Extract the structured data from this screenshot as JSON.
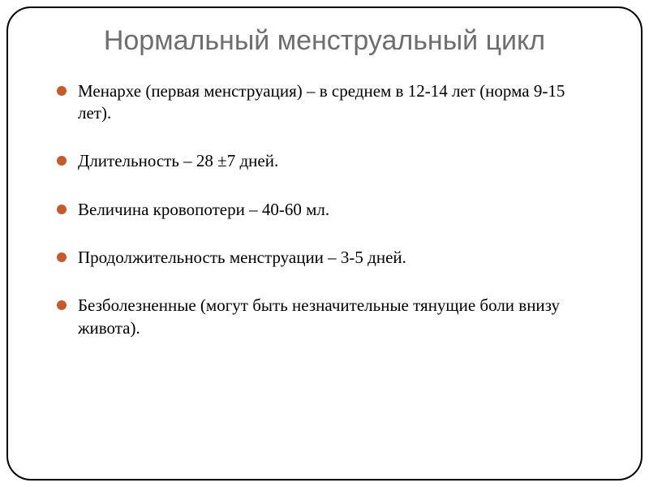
{
  "slide": {
    "title": "Нормальный менструальный цикл",
    "title_color": "#6e6e6e",
    "title_fontsize": 34,
    "border_color": "#000000",
    "border_radius": 30,
    "background_color": "#ffffff",
    "bullet_color": "#c55a2a",
    "bullet_size": 12,
    "text_color": "#000000",
    "text_fontsize": 21,
    "items": [
      "Менархе (первая менструация) – в среднем в 12-14 лет (норма 9-15 лет).",
      "Длительность – 28 ±7 дней.",
      "Величина кровопотери – 40-60 мл.",
      "Продолжительность менструации – 3-5 дней.",
      "Безболезненные (могут быть незначительные тянущие боли внизу живота)."
    ]
  }
}
